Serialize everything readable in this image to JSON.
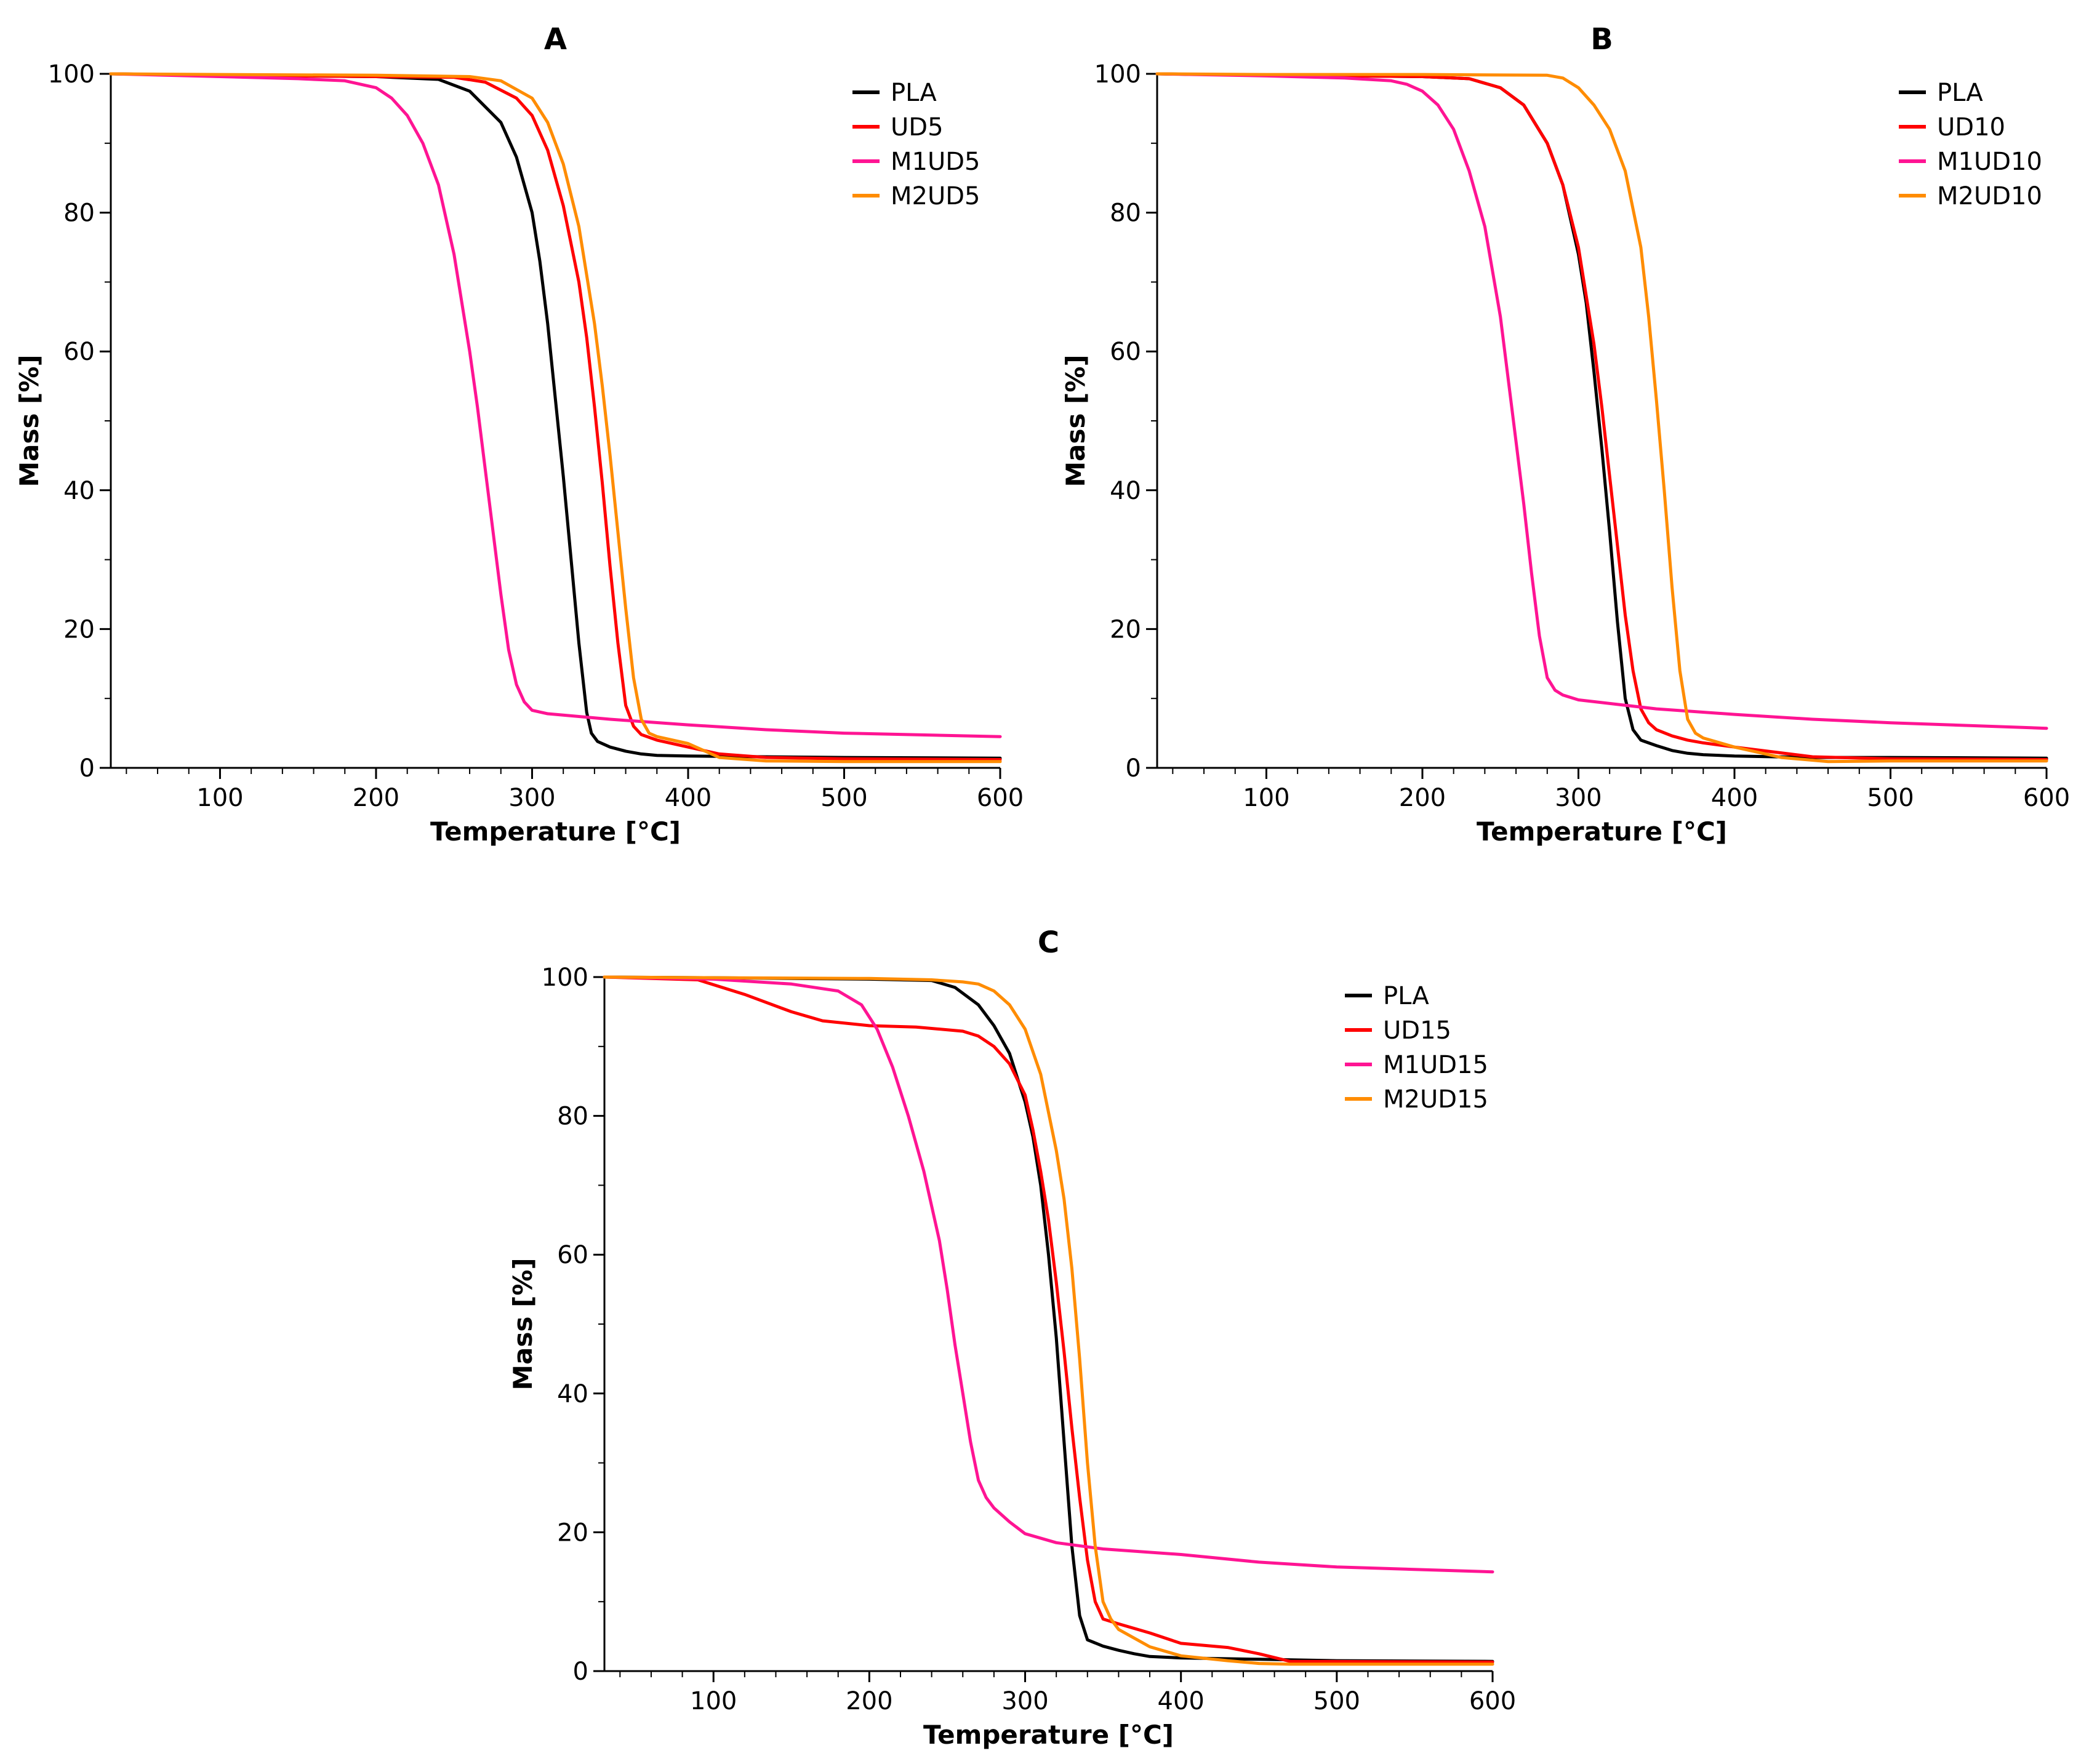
{
  "chart_data": [
    {
      "type": "line",
      "title": "A",
      "xlabel": "Temperature [°C]",
      "ylabel": "Mass [%]",
      "xlim": [
        30,
        600
      ],
      "ylim": [
        0,
        100
      ],
      "xticks": [
        100,
        200,
        300,
        400,
        500,
        600
      ],
      "yticks": [
        0,
        20,
        40,
        60,
        80,
        100
      ],
      "grid": false,
      "legend_position": "top-right",
      "series": [
        {
          "name": "PLA",
          "color": "#000000",
          "x": [
            30,
            100,
            200,
            240,
            260,
            280,
            290,
            300,
            305,
            310,
            315,
            320,
            325,
            330,
            335,
            338,
            342,
            350,
            360,
            370,
            380,
            400,
            450,
            500,
            600
          ],
          "y": [
            100,
            99.8,
            99.6,
            99.2,
            97.5,
            93,
            88,
            80,
            73,
            64,
            53,
            42,
            30,
            18,
            8,
            5,
            3.8,
            3,
            2.4,
            2,
            1.8,
            1.7,
            1.6,
            1.5,
            1.4
          ]
        },
        {
          "name": "UD5",
          "color": "#ff0000",
          "x": [
            30,
            100,
            200,
            250,
            270,
            290,
            300,
            310,
            320,
            330,
            335,
            340,
            345,
            350,
            355,
            360,
            365,
            370,
            380,
            400,
            420,
            450,
            500,
            600
          ],
          "y": [
            100,
            99.8,
            99.6,
            99.5,
            98.8,
            96.5,
            94,
            89,
            81,
            70,
            62,
            52,
            41,
            29,
            18,
            9,
            6,
            4.8,
            4,
            3,
            2,
            1.5,
            1.3,
            1.2
          ]
        },
        {
          "name": "M1UD5",
          "color": "#ff1493",
          "x": [
            30,
            100,
            150,
            180,
            200,
            210,
            220,
            230,
            240,
            250,
            260,
            265,
            270,
            275,
            280,
            285,
            290,
            295,
            300,
            310,
            350,
            400,
            450,
            500,
            600
          ],
          "y": [
            100,
            99.6,
            99.3,
            99,
            98,
            96.5,
            94,
            90,
            84,
            74,
            60,
            52,
            43,
            34,
            25,
            17,
            12,
            9.5,
            8.3,
            7.8,
            7,
            6.2,
            5.5,
            5,
            4.5
          ]
        },
        {
          "name": "M2UD5",
          "color": "#ff8c00",
          "x": [
            30,
            100,
            200,
            260,
            280,
            300,
            310,
            320,
            330,
            340,
            345,
            350,
            355,
            360,
            365,
            370,
            375,
            380,
            400,
            420,
            450,
            500,
            600
          ],
          "y": [
            100,
            99.9,
            99.8,
            99.6,
            99,
            96.5,
            93,
            87,
            78,
            64,
            55,
            45,
            34,
            23,
            13,
            7,
            5,
            4.5,
            3.5,
            1.5,
            1,
            0.9,
            0.9
          ]
        }
      ]
    },
    {
      "type": "line",
      "title": "B",
      "xlabel": "Temperature [°C]",
      "ylabel": "Mass [%]",
      "xlim": [
        30,
        600
      ],
      "ylim": [
        0,
        100
      ],
      "xticks": [
        100,
        200,
        300,
        400,
        500,
        600
      ],
      "yticks": [
        0,
        20,
        40,
        60,
        80,
        100
      ],
      "grid": false,
      "legend_position": "top-right",
      "series": [
        {
          "name": "PLA",
          "color": "#000000",
          "x": [
            30,
            100,
            200,
            230,
            250,
            265,
            280,
            290,
            300,
            305,
            310,
            315,
            320,
            325,
            330,
            335,
            340,
            350,
            360,
            370,
            380,
            400,
            450,
            500,
            600
          ],
          "y": [
            100,
            99.8,
            99.6,
            99.3,
            98,
            95.5,
            90,
            84,
            74,
            67,
            57,
            46,
            34,
            21,
            10,
            5.5,
            4,
            3.2,
            2.5,
            2.1,
            1.9,
            1.7,
            1.5,
            1.5,
            1.4
          ]
        },
        {
          "name": "UD10",
          "color": "#ff0000",
          "x": [
            30,
            100,
            200,
            230,
            250,
            265,
            280,
            290,
            300,
            310,
            315,
            320,
            325,
            330,
            335,
            340,
            345,
            350,
            360,
            370,
            380,
            400,
            450,
            500,
            600
          ],
          "y": [
            100,
            99.8,
            99.6,
            99.3,
            98,
            95.5,
            90,
            84,
            75,
            61,
            52,
            42,
            32,
            22,
            14,
            8.5,
            6.5,
            5.5,
            4.6,
            4,
            3.6,
            3,
            1.6,
            1.3,
            1.2
          ]
        },
        {
          "name": "M1UD10",
          "color": "#ff1493",
          "x": [
            30,
            100,
            150,
            180,
            190,
            200,
            210,
            220,
            230,
            240,
            250,
            255,
            260,
            265,
            270,
            275,
            280,
            285,
            290,
            300,
            350,
            400,
            450,
            500,
            600
          ],
          "y": [
            100,
            99.7,
            99.4,
            99,
            98.5,
            97.5,
            95.5,
            92,
            86,
            78,
            65,
            56,
            47,
            38,
            28,
            19,
            13,
            11.2,
            10.5,
            9.8,
            8.5,
            7.7,
            7,
            6.5,
            5.7
          ]
        },
        {
          "name": "M2UD10",
          "color": "#ff8c00",
          "x": [
            30,
            100,
            200,
            280,
            290,
            300,
            310,
            320,
            330,
            340,
            345,
            350,
            355,
            360,
            365,
            370,
            375,
            380,
            400,
            430,
            460,
            500,
            600
          ],
          "y": [
            100,
            99.9,
            99.9,
            99.8,
            99.4,
            98,
            95.5,
            92,
            86,
            75,
            65,
            53,
            40,
            26,
            14,
            7,
            5,
            4.3,
            3,
            1.5,
            0.9,
            1,
            1
          ]
        }
      ]
    },
    {
      "type": "line",
      "title": "C",
      "xlabel": "Temperature [°C]",
      "ylabel": "Mass [%]",
      "xlim": [
        30,
        600
      ],
      "ylim": [
        0,
        100
      ],
      "xticks": [
        100,
        200,
        300,
        400,
        500,
        600
      ],
      "yticks": [
        0,
        20,
        40,
        60,
        80,
        100
      ],
      "grid": false,
      "legend_position": "top-right",
      "series": [
        {
          "name": "PLA",
          "color": "#000000",
          "x": [
            30,
            100,
            200,
            240,
            255,
            270,
            280,
            290,
            300,
            305,
            310,
            315,
            320,
            325,
            330,
            335,
            340,
            350,
            360,
            370,
            380,
            400,
            450,
            500,
            600
          ],
          "y": [
            100,
            99.9,
            99.7,
            99.5,
            98.5,
            96,
            93,
            89,
            82,
            77,
            70,
            60,
            48,
            33,
            18,
            8,
            4.5,
            3.6,
            3,
            2.5,
            2.1,
            1.9,
            1.7,
            1.5,
            1.4
          ]
        },
        {
          "name": "UD15",
          "color": "#ff0000",
          "x": [
            30,
            90,
            120,
            150,
            170,
            200,
            230,
            260,
            270,
            280,
            290,
            300,
            305,
            310,
            315,
            320,
            325,
            330,
            335,
            340,
            345,
            350,
            360,
            380,
            400,
            430,
            450,
            470,
            600
          ],
          "y": [
            100,
            99.6,
            97.5,
            95,
            93.7,
            93,
            92.8,
            92.2,
            91.5,
            90,
            87.5,
            83,
            78,
            72,
            65,
            56,
            46,
            35,
            25,
            16,
            10,
            7.5,
            6.8,
            5.5,
            4,
            3.4,
            2.5,
            1.4,
            1.3
          ]
        },
        {
          "name": "M1UD15",
          "color": "#ff1493",
          "x": [
            30,
            100,
            150,
            180,
            195,
            205,
            215,
            225,
            235,
            245,
            250,
            255,
            260,
            265,
            270,
            275,
            280,
            290,
            300,
            320,
            350,
            400,
            450,
            500,
            600
          ],
          "y": [
            100,
            99.7,
            99,
            98,
            96,
            92.5,
            87,
            80,
            72,
            62,
            55,
            47,
            40,
            33,
            27.5,
            25,
            23.5,
            21.5,
            19.8,
            18.5,
            17.6,
            16.8,
            15.7,
            15,
            14.3
          ]
        },
        {
          "name": "M2UD15",
          "color": "#ff8c00",
          "x": [
            30,
            100,
            200,
            240,
            260,
            270,
            280,
            290,
            300,
            310,
            320,
            325,
            330,
            335,
            340,
            345,
            350,
            355,
            360,
            380,
            400,
            430,
            450,
            470,
            600
          ],
          "y": [
            100,
            99.9,
            99.8,
            99.6,
            99.3,
            99,
            98,
            96,
            92.5,
            86,
            75,
            68,
            58,
            45,
            30,
            18,
            10,
            7.5,
            6,
            3.5,
            2.2,
            1.5,
            1.1,
            1,
            1
          ]
        }
      ]
    }
  ]
}
